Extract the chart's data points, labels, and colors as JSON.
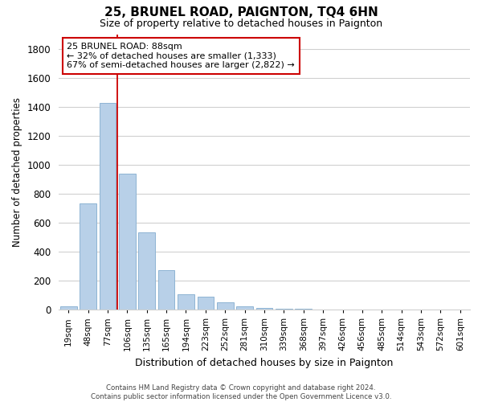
{
  "title": "25, BRUNEL ROAD, PAIGNTON, TQ4 6HN",
  "subtitle": "Size of property relative to detached houses in Paignton",
  "xlabel": "Distribution of detached houses by size in Paignton",
  "ylabel": "Number of detached properties",
  "footer_line1": "Contains HM Land Registry data © Crown copyright and database right 2024.",
  "footer_line2": "Contains public sector information licensed under the Open Government Licence v3.0.",
  "bar_labels": [
    "19sqm",
    "48sqm",
    "77sqm",
    "106sqm",
    "135sqm",
    "165sqm",
    "194sqm",
    "223sqm",
    "252sqm",
    "281sqm",
    "310sqm",
    "339sqm",
    "368sqm",
    "397sqm",
    "426sqm",
    "456sqm",
    "485sqm",
    "514sqm",
    "543sqm",
    "572sqm",
    "601sqm"
  ],
  "bar_values": [
    20,
    730,
    1425,
    935,
    530,
    270,
    103,
    90,
    50,
    25,
    10,
    5,
    3,
    1,
    1,
    0,
    0,
    0,
    0,
    0,
    0
  ],
  "bar_color": "#b8d0e8",
  "bar_edge_color": "#8eb4d4",
  "vline_x": 2.5,
  "vline_color": "#cc0000",
  "ann_title": "25 BRUNEL ROAD: 88sqm",
  "ann_line1": "← 32% of detached houses are smaller (1,333)",
  "ann_line2": "67% of semi-detached houses are larger (2,822) →",
  "ylim": [
    0,
    1900
  ],
  "yticks": [
    0,
    200,
    400,
    600,
    800,
    1000,
    1200,
    1400,
    1600,
    1800
  ],
  "background_color": "#ffffff",
  "grid_color": "#d0d0d0"
}
